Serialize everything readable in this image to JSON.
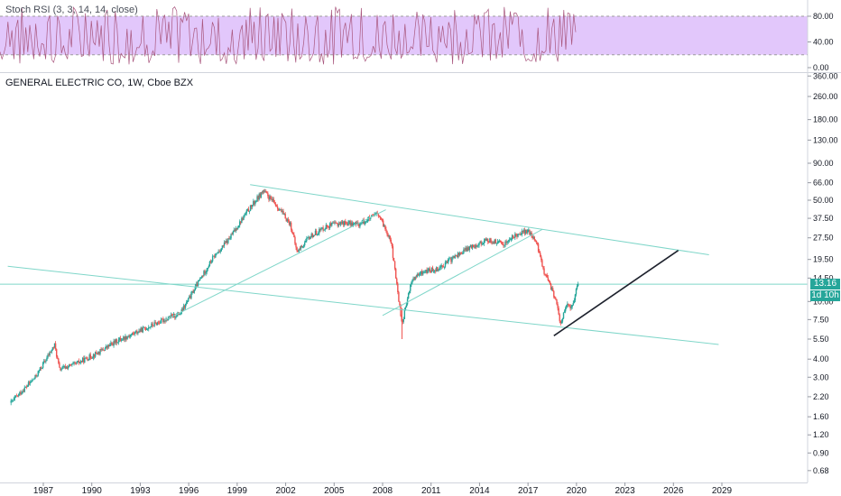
{
  "indicator": {
    "title": "Stoch RSI (3, 3, 14, 14, close)",
    "ticks": [
      "80.00",
      "40.00",
      "0.00"
    ]
  },
  "chart": {
    "title": "GENERAL ELECTRIC CO, 1W, Cboe BZX",
    "price_badge": "13.16",
    "countdown_badge": "1d 10h",
    "colors": {
      "up": "#26a69a",
      "down": "#ef5350",
      "trendline": "#7fd6c9",
      "support": "#1e222d",
      "stoch_band": "#e2c7fb",
      "stoch_line": "#a9577e",
      "price_badge": "#26a69a"
    }
  },
  "chart_data": {
    "type": "candlestick",
    "scale": "log",
    "y_ticks": [
      "360.00",
      "260.00",
      "180.00",
      "130.00",
      "90.00",
      "66.00",
      "50.00",
      "37.50",
      "27.50",
      "19.50",
      "14.50",
      "10.00",
      "7.50",
      "5.50",
      "4.00",
      "3.00",
      "2.20",
      "1.60",
      "1.20",
      "0.90",
      "0.68"
    ],
    "x_ticks": [
      "1987",
      "1990",
      "1993",
      "1996",
      "1999",
      "2002",
      "2005",
      "2008",
      "2011",
      "2014",
      "2017",
      "2020",
      "2023",
      "2026",
      "2029"
    ],
    "series": [
      {
        "values": [
          [
            1985.0,
            2.0
          ],
          [
            1986.5,
            3.0
          ],
          [
            1987.7,
            5.0
          ],
          [
            1988.0,
            3.4
          ],
          [
            1989.0,
            3.7
          ],
          [
            1990.5,
            4.5
          ],
          [
            1991.5,
            5.3
          ],
          [
            1993.0,
            6.3
          ],
          [
            1994.5,
            7.5
          ],
          [
            1995.5,
            8.3
          ],
          [
            1996.5,
            13.0
          ],
          [
            1997.5,
            20.0
          ],
          [
            1998.5,
            27.0
          ],
          [
            1999.5,
            40.0
          ],
          [
            2000.6,
            58.0
          ],
          [
            2001.5,
            45.0
          ],
          [
            2002.3,
            34.0
          ],
          [
            2002.7,
            22.0
          ],
          [
            2003.5,
            28.0
          ],
          [
            2004.5,
            33.0
          ],
          [
            2005.5,
            35.0
          ],
          [
            2006.5,
            34.0
          ],
          [
            2007.7,
            40.0
          ],
          [
            2008.5,
            27.0
          ],
          [
            2009.2,
            7.0
          ],
          [
            2009.8,
            14.0
          ],
          [
            2010.5,
            16.0
          ],
          [
            2011.5,
            17.0
          ],
          [
            2012.5,
            20.5
          ],
          [
            2013.5,
            24.0
          ],
          [
            2014.5,
            26.5
          ],
          [
            2015.5,
            25.0
          ],
          [
            2016.5,
            30.0
          ],
          [
            2017.0,
            30.5
          ],
          [
            2017.5,
            26.0
          ],
          [
            2018.0,
            16.0
          ],
          [
            2018.7,
            10.5
          ],
          [
            2019.0,
            7.0
          ],
          [
            2019.4,
            9.5
          ],
          [
            2019.7,
            9.0
          ],
          [
            2019.9,
            11.0
          ],
          [
            2020.1,
            13.16
          ]
        ]
      }
    ],
    "trendlines": [
      {
        "name": "upper-channel",
        "points": [
          [
            1999.8,
            64.0
          ],
          [
            2028.2,
            21.0
          ]
        ]
      },
      {
        "name": "lower-channel",
        "points": [
          [
            1984.8,
            17.5
          ],
          [
            2028.8,
            5.05
          ]
        ]
      },
      {
        "name": "inner-channel-1",
        "points": [
          [
            1994.5,
            7.4
          ],
          [
            2008.2,
            43.0
          ]
        ]
      },
      {
        "name": "inner-channel-2",
        "points": [
          [
            2008.0,
            8.0
          ],
          [
            2017.9,
            31.5
          ]
        ]
      },
      {
        "name": "support-line",
        "points": [
          [
            2018.6,
            5.8
          ],
          [
            2026.3,
            22.5
          ]
        ]
      }
    ]
  }
}
